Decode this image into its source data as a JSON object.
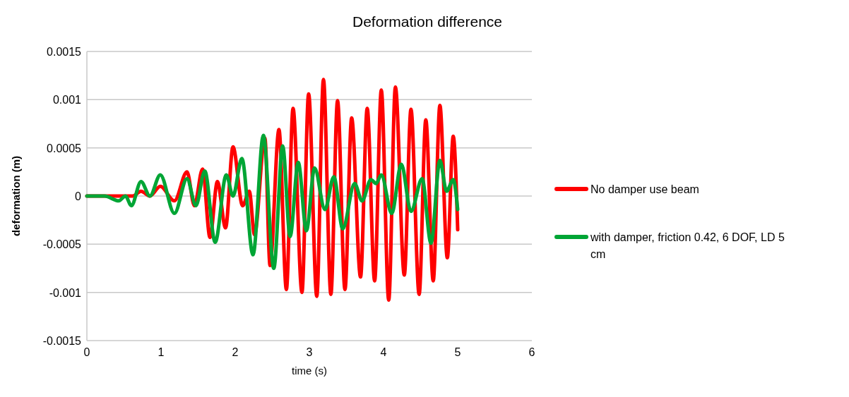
{
  "chart_data": {
    "type": "line",
    "title": "Deformation difference",
    "xlabel": "time (s)",
    "ylabel": "deformation (m)",
    "xlim": [
      0,
      6
    ],
    "xticks": [
      0,
      1,
      2,
      3,
      4,
      5,
      6
    ],
    "ylim": [
      -0.0015,
      0.0015
    ],
    "yticks": [
      -0.0015,
      -0.001,
      -0.0005,
      0,
      0.0005,
      0.001,
      0.0015
    ],
    "grid": "y",
    "legend": "right",
    "marker": "none",
    "line_style": "solid",
    "series": [
      {
        "name": "No damper use beam",
        "color": "#ff0000",
        "x": [
          0,
          0.2,
          0.4,
          0.52,
          0.62,
          0.73,
          0.85,
          0.99,
          1.18,
          1.35,
          1.45,
          1.56,
          1.66,
          1.76,
          1.87,
          1.97,
          2.1,
          2.19,
          2.26,
          2.4,
          2.47,
          2.59,
          2.69,
          2.78,
          2.9,
          2.99,
          3.1,
          3.19,
          3.29,
          3.38,
          3.48,
          3.57,
          3.69,
          3.78,
          3.88,
          3.97,
          4.07,
          4.16,
          4.28,
          4.37,
          4.48,
          4.57,
          4.67,
          4.76,
          4.86,
          4.94,
          5
        ],
        "values": [
          0,
          0,
          0,
          0,
          0,
          5e-05,
          0,
          0.0001,
          -5e-05,
          0.00025,
          -0.0001,
          0.00028,
          -0.00043,
          0.00015,
          -0.00033,
          0.00051,
          -0.0001,
          5e-05,
          -0.0004,
          0.0006,
          -0.00072,
          0.00069,
          -0.00097,
          0.00091,
          -0.001,
          0.00106,
          -0.00104,
          0.00121,
          -0.00102,
          0.00099,
          -0.00097,
          0.00081,
          -0.00084,
          0.00091,
          -0.00088,
          0.0011,
          -0.00108,
          0.00113,
          -0.00082,
          0.0009,
          -0.00102,
          0.00079,
          -0.00088,
          0.00094,
          -0.00064,
          0.00062,
          -0.00035
        ]
      },
      {
        "name": "with damper, friction 0.42, 6 DOF, LD 5 cm",
        "color": "#00a535",
        "x": [
          0,
          0.14,
          0.24,
          0.43,
          0.52,
          0.6,
          0.73,
          0.85,
          0.99,
          1.18,
          1.35,
          1.47,
          1.59,
          1.73,
          1.88,
          1.97,
          2.09,
          2.24,
          2.38,
          2.52,
          2.64,
          2.74,
          2.85,
          2.96,
          3.07,
          3.21,
          3.33,
          3.45,
          3.61,
          3.71,
          3.83,
          3.9,
          3.97,
          4.11,
          4.24,
          4.37,
          4.52,
          4.64,
          4.76,
          4.85,
          4.94,
          5
        ],
        "values": [
          0,
          0,
          0,
          -5e-05,
          0,
          -0.0001,
          0.00015,
          0,
          0.00022,
          -0.00018,
          0.00018,
          -0.0001,
          0.00026,
          -0.00048,
          0.00022,
          0,
          0.00039,
          -0.00061,
          0.00063,
          -0.00075,
          0.00052,
          -0.00042,
          0.00035,
          -0.00036,
          0.00029,
          -0.00014,
          0.0002,
          -0.00034,
          0.00013,
          -5e-05,
          0.00017,
          0.00013,
          0.00022,
          -0.00018,
          0.00033,
          -0.00016,
          0.00018,
          -0.00049,
          0.00037,
          5e-05,
          0.00017,
          -0.00014
        ]
      }
    ]
  }
}
